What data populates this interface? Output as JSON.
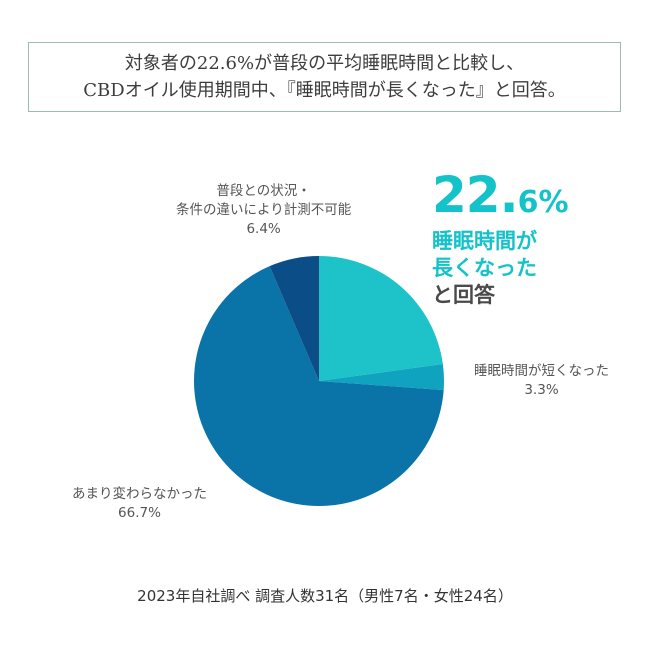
{
  "headline": {
    "line1": "対象者の22.6%が普段の平均睡眠時間と比較し、",
    "line2": "CBDオイル使用期間中、『睡眠時間が長くなった』と回答。"
  },
  "callout": {
    "percent_int": "22.",
    "percent_frac": "6%",
    "line1": "睡眠時間が",
    "line2": "長くなった",
    "line3": "と回答"
  },
  "footer": "2023年自社調べ 調査人数31名（男性7名・女性24名）",
  "chart_data": {
    "type": "pie",
    "start_angle_deg": 0,
    "direction": "clockwise",
    "slices": [
      {
        "label": "睡眠時間が長くなった",
        "value": 22.6,
        "value_label": "",
        "color": "#1ec3ca"
      },
      {
        "label_lines": [
          "睡眠時間が短くなった"
        ],
        "value": 3.3,
        "value_label": "3.3%",
        "color": "#0fa3bf"
      },
      {
        "label_lines": [
          "あまり変わらなかった"
        ],
        "value": 66.7,
        "value_label": "66.7%",
        "color": "#0a73a8"
      },
      {
        "label_lines": [
          "普段との状況・",
          "条件の違いにより計測不可能"
        ],
        "value": 6.4,
        "value_label": "6.4%",
        "color": "#0b4d86"
      }
    ]
  }
}
